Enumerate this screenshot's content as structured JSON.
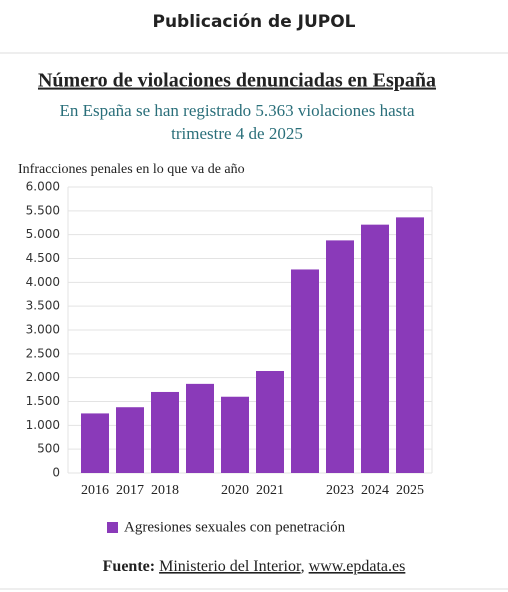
{
  "header": {
    "title": "Publicación de JUPOL"
  },
  "chart_data": {
    "type": "bar",
    "title": "Número de violaciones denunciadas en España",
    "subtitle": [
      "En España se han registrado 5.363 violaciones hasta",
      "trimestre 4 de 2025"
    ],
    "y_axis_label": "Infracciones penales en lo que va de año",
    "categories": [
      "2016",
      "2017",
      "2018",
      null,
      "2020",
      "2021",
      null,
      "2023",
      "2024",
      "2025"
    ],
    "series": [
      {
        "name": "Agresiones sexuales con penetración",
        "color": "#8a3ab9",
        "values": [
          1250,
          1380,
          1700,
          1870,
          1600,
          2140,
          4270,
          4880,
          5210,
          5363
        ]
      }
    ],
    "ylim": [
      0,
      6000
    ],
    "yticks": [
      0,
      500,
      {
        "value": 1000,
        "label": "1.000"
      },
      {
        "value": 1500,
        "label": "1.500"
      },
      {
        "value": 2000,
        "label": "2.000"
      },
      {
        "value": 2500,
        "label": "2.500"
      },
      {
        "value": 3000,
        "label": "3.000"
      },
      {
        "value": 3500,
        "label": "3.500"
      },
      {
        "value": 4000,
        "label": "4.000"
      },
      {
        "value": 4500,
        "label": "4.500"
      },
      {
        "value": 5000,
        "label": "5.000"
      },
      {
        "value": 5500,
        "label": "5.500"
      },
      {
        "value": 6000,
        "label": "6.000"
      }
    ],
    "grid": true,
    "source_label": "Fuente:",
    "source_links": [
      "Ministerio del Interior",
      "www.epdata.es"
    ],
    "source_separator": ","
  }
}
